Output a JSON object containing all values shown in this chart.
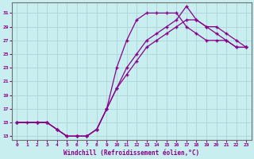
{
  "xlabel": "Windchill (Refroidissement éolien,°C)",
  "bg_color": "#c8eef0",
  "grid_color": "#b0d8dc",
  "line_color": "#880088",
  "xlim": [
    -0.5,
    23.5
  ],
  "ylim": [
    12.5,
    32.5
  ],
  "xticks": [
    0,
    1,
    2,
    3,
    4,
    5,
    6,
    7,
    8,
    9,
    10,
    11,
    12,
    13,
    14,
    15,
    16,
    17,
    18,
    19,
    20,
    21,
    22,
    23
  ],
  "yticks": [
    13,
    15,
    17,
    19,
    21,
    23,
    25,
    27,
    29,
    31
  ],
  "curve1_x": [
    0,
    1,
    2,
    3,
    4,
    5,
    6,
    7,
    8,
    9,
    10,
    11,
    12,
    13,
    14,
    15,
    16,
    17,
    18,
    19,
    20,
    21,
    22,
    23
  ],
  "curve1_y": [
    15,
    15,
    15,
    15,
    14,
    13,
    13,
    13,
    14,
    17,
    23,
    27,
    30,
    31,
    31,
    31,
    31,
    29,
    28,
    27,
    27,
    27,
    26,
    26
  ],
  "curve2_x": [
    0,
    2,
    3,
    4,
    5,
    6,
    7,
    8,
    9,
    10,
    11,
    12,
    13,
    14,
    15,
    16,
    17,
    18,
    19,
    20,
    21,
    22,
    23
  ],
  "curve2_y": [
    15,
    15,
    15,
    14,
    13,
    13,
    13,
    14,
    17,
    20,
    22,
    24,
    26,
    27,
    28,
    29,
    30,
    30,
    29,
    28,
    27,
    26,
    26
  ],
  "curve3_x": [
    0,
    2,
    3,
    4,
    5,
    6,
    7,
    8,
    9,
    10,
    11,
    12,
    13,
    14,
    15,
    16,
    17,
    18,
    19,
    20,
    21,
    22,
    23
  ],
  "curve3_y": [
    15,
    15,
    15,
    14,
    13,
    13,
    13,
    14,
    17,
    20,
    23,
    25,
    27,
    28,
    29,
    30,
    32,
    30,
    29,
    29,
    28,
    27,
    26
  ]
}
